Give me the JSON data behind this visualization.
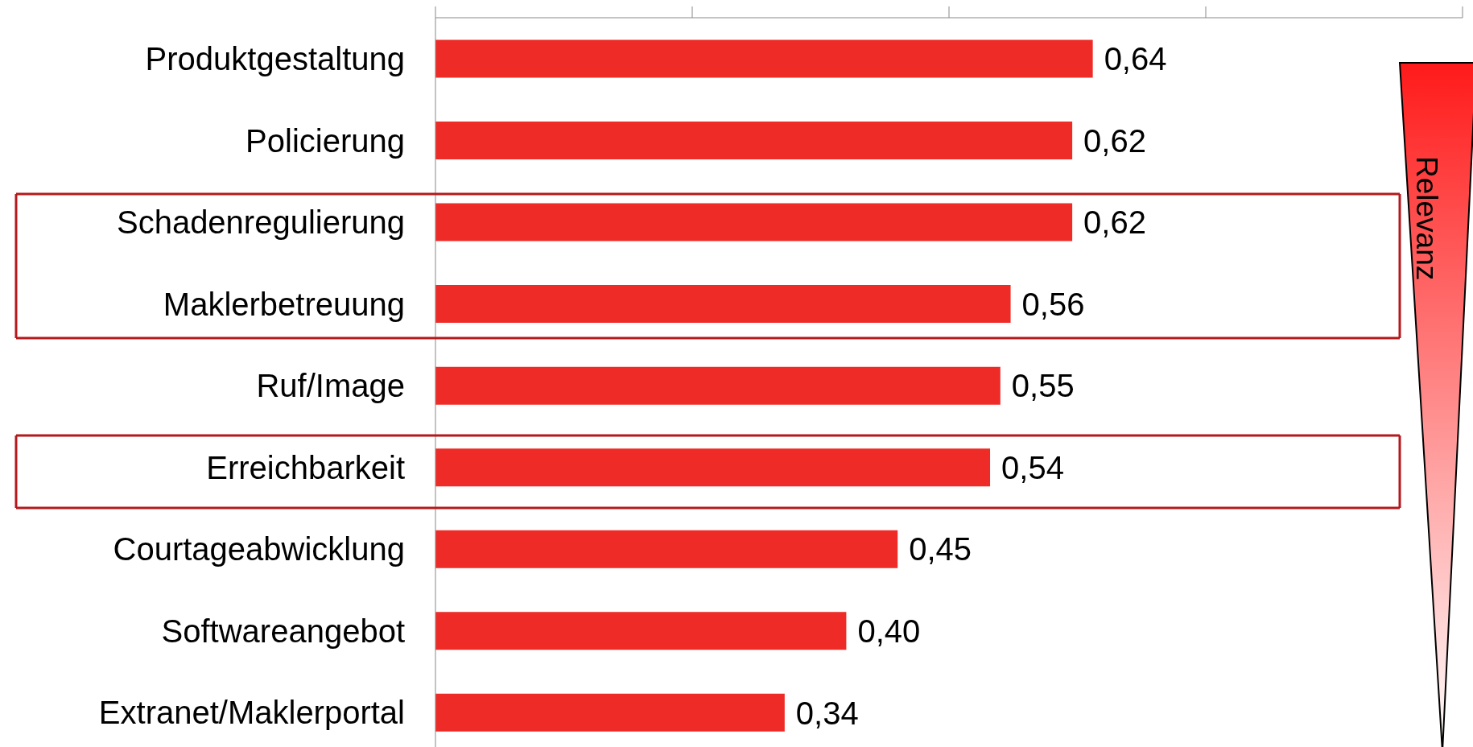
{
  "chart_data": {
    "type": "bar",
    "orientation": "horizontal",
    "categories": [
      "Produktgestaltung",
      "Policierung",
      "Schadenregulierung",
      "Maklerbetreuung",
      "Ruf/Image",
      "Erreichbarkeit",
      "Courtageabwicklung",
      "Softwareangebot",
      "Extranet/Maklerportal"
    ],
    "values": [
      0.64,
      0.62,
      0.62,
      0.56,
      0.55,
      0.54,
      0.45,
      0.4,
      0.34
    ],
    "value_labels": [
      "0,64",
      "0,62",
      "0,62",
      "0,56",
      "0,55",
      "0,54",
      "0,45",
      "0,40",
      "0,34"
    ],
    "color": "#ee2b27",
    "xlim": [
      0,
      1
    ],
    "xticks": [
      {
        "value": 0,
        "label": null
      },
      {
        "value": 0.25,
        "label": null
      },
      {
        "value": 0.5,
        "label": null
      },
      {
        "value": 0.75,
        "label": null
      },
      {
        "value": 1,
        "label": null
      }
    ],
    "tick_labels": "y",
    "annotations": [
      "Relevanz"
    ]
  }
}
